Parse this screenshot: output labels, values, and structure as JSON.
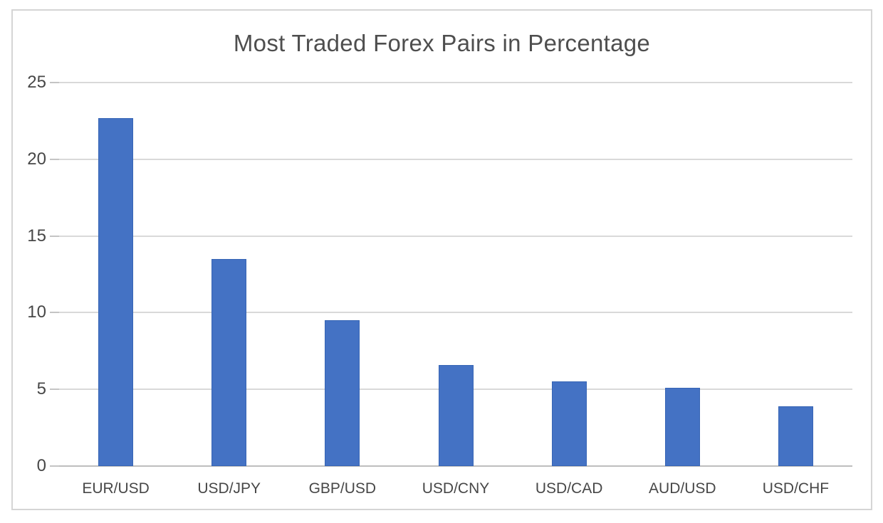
{
  "chart_data": {
    "type": "bar",
    "title": "Most Traded Forex Pairs in Percentage",
    "categories": [
      "EUR/USD",
      "USD/JPY",
      "GBP/USD",
      "USD/CNY",
      "USD/CAD",
      "AUD/USD",
      "USD/CHF"
    ],
    "values": [
      22.7,
      13.5,
      9.5,
      6.6,
      5.5,
      5.1,
      3.9
    ],
    "xlabel": "",
    "ylabel": "",
    "ylim": [
      0,
      25
    ],
    "yticks": [
      0,
      5,
      10,
      15,
      20,
      25
    ],
    "grid": true,
    "legend": false,
    "colors": {
      "bar_fill": "#4472C4",
      "bar_border": "#3765B5",
      "gridline": "#D9D9D9",
      "axis_line": "#BEBEBE",
      "tick_mark": "#C4C4C4",
      "title_text": "#4E4E4E",
      "label_text": "#474747",
      "card_border": "#D5D5D5",
      "background": "#FFFFFF"
    }
  }
}
